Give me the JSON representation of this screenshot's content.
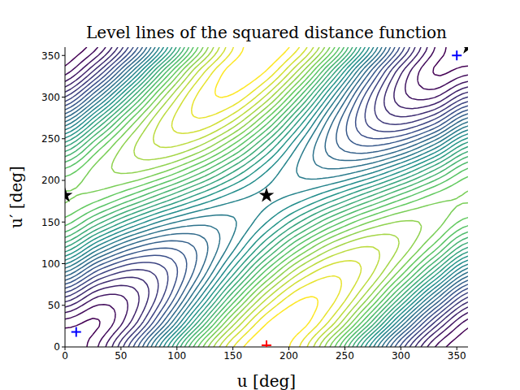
{
  "chart_data": {
    "type": "contour",
    "title": "Level lines of the squared distance function",
    "xlabel": "u [deg]",
    "ylabel": "u′ [deg]",
    "color": "viridis",
    "xlim": [
      0,
      360
    ],
    "ylim": [
      0,
      360
    ],
    "xticks": [
      0,
      50,
      100,
      150,
      200,
      250,
      300,
      350
    ],
    "yticks": [
      0,
      50,
      100,
      150,
      200,
      250,
      300,
      350
    ],
    "x": [
      0,
      30,
      60,
      90,
      120,
      150,
      180,
      210,
      240,
      270,
      300,
      330,
      360
    ],
    "y": [
      0,
      30,
      60,
      90,
      120,
      150,
      180,
      210,
      240,
      270,
      300,
      330,
      360
    ],
    "z": [
      [
        0,
        0.6,
        2.25,
        4.5,
        6.75,
        8.4,
        9,
        8.4,
        6.75,
        4.5,
        2.25,
        0.6,
        0
      ],
      [
        0.47,
        0.27,
        1.22,
        3.07,
        5.32,
        7.37,
        8.67,
        8.87,
        7.92,
        6.07,
        3.82,
        1.77,
        0.47
      ],
      [
        1.75,
        0.85,
        1.0,
        2.15,
        4.0,
        6.05,
        7.75,
        8.65,
        8.5,
        7.35,
        5.5,
        3.45,
        1.75
      ],
      [
        3.5,
        2.2,
        1.65,
        2.0,
        3.15,
        4.8,
        6.5,
        7.8,
        8.35,
        8.0,
        6.85,
        5.2,
        3.5
      ],
      [
        5.25,
        3.95,
        3.0,
        2.65,
        3.0,
        3.95,
        5.25,
        6.55,
        7.5,
        7.85,
        7.5,
        6.55,
        5.25
      ],
      [
        6.53,
        5.63,
        4.68,
        3.93,
        3.59,
        3.73,
        4.34,
        5.23,
        6.18,
        6.93,
        7.28,
        7.13,
        6.53
      ],
      [
        7.0,
        6.8,
        6.25,
        5.5,
        4.75,
        4.2,
        4.0,
        4.2,
        4.75,
        5.5,
        6.25,
        6.8,
        7.0
      ],
      [
        6.53,
        7.13,
        7.28,
        6.93,
        6.18,
        5.23,
        4.34,
        3.73,
        3.59,
        3.93,
        4.68,
        5.63,
        6.53
      ],
      [
        5.25,
        6.55,
        7.5,
        7.85,
        7.5,
        6.55,
        5.25,
        3.95,
        3.0,
        2.65,
        3.0,
        3.95,
        5.25
      ],
      [
        3.5,
        5.2,
        6.85,
        8.0,
        8.35,
        7.8,
        6.5,
        4.8,
        3.15,
        2.0,
        1.65,
        2.2,
        3.5
      ],
      [
        1.75,
        3.45,
        5.5,
        7.35,
        8.5,
        8.65,
        7.75,
        6.05,
        4.0,
        2.15,
        1.0,
        0.85,
        1.75
      ],
      [
        0.47,
        1.77,
        3.82,
        6.07,
        7.92,
        8.87,
        8.67,
        7.37,
        5.32,
        3.07,
        1.22,
        0.27,
        0.47
      ],
      [
        0,
        0.6,
        2.25,
        4.5,
        6.75,
        8.4,
        9,
        8.4,
        6.75,
        4.5,
        2.25,
        0.6,
        0
      ]
    ],
    "series": [
      {
        "type": "scatter",
        "marker": "star",
        "color": "#000000",
        "x": [
          0,
          180,
          360
        ],
        "values": [
          182,
          182,
          360
        ]
      },
      {
        "type": "scatter",
        "marker": "plus",
        "color": "#0000ff",
        "x": [
          10,
          350
        ],
        "values": [
          18,
          350
        ]
      },
      {
        "type": "scatter",
        "marker": "plus",
        "color": "#ff0000",
        "x": [
          180
        ],
        "values": [
          2
        ]
      }
    ]
  }
}
